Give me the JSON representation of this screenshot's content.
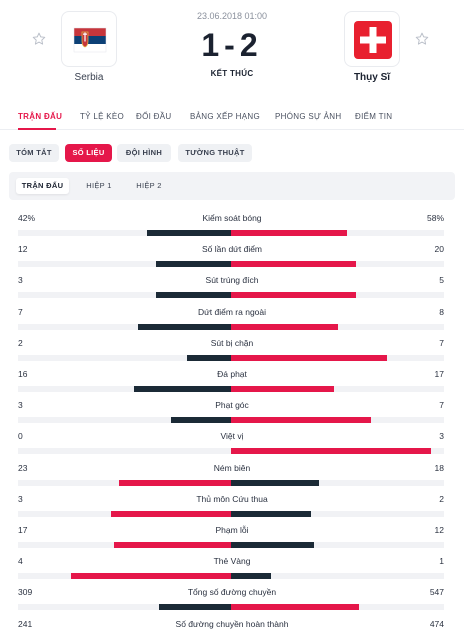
{
  "match": {
    "date": "23.06.2018 01:00",
    "score": "1-2",
    "status": "KẾT THÚC",
    "home": {
      "name": "Serbia"
    },
    "away": {
      "name": "Thụy Sĩ"
    }
  },
  "main_tabs": [
    "TRẬN ĐẤU",
    "TỶ LỆ KÈO",
    "ĐỐI ĐẦU",
    "BẢNG XẾP HẠNG",
    "PHÓNG SỰ ẢNH",
    "ĐIỂM TIN"
  ],
  "sub_tabs": [
    "TÓM TẮT",
    "SỐ LIỆU",
    "ĐỘI HÌNH",
    "TƯỜNG THUẬT"
  ],
  "period_tabs": [
    "TRẬN ĐẤU",
    "HIỆP 1",
    "HIỆP 2"
  ],
  "colors": {
    "accent": "#e5174a",
    "dark": "#1b2a36",
    "track": "#f1f2f5"
  },
  "stats": [
    {
      "label": "Kiểm soát bóng",
      "home": "42%",
      "away": "58%",
      "home_val": 42,
      "away_val": 58
    },
    {
      "label": "Số lần dứt điểm",
      "home": "12",
      "away": "20",
      "home_val": 12,
      "away_val": 20
    },
    {
      "label": "Sút trúng đích",
      "home": "3",
      "away": "5",
      "home_val": 3,
      "away_val": 5
    },
    {
      "label": "Dứt điểm ra ngoài",
      "home": "7",
      "away": "8",
      "home_val": 7,
      "away_val": 8
    },
    {
      "label": "Sút bị chặn",
      "home": "2",
      "away": "7",
      "home_val": 2,
      "away_val": 7
    },
    {
      "label": "Đá phạt",
      "home": "16",
      "away": "17",
      "home_val": 16,
      "away_val": 17
    },
    {
      "label": "Phạt góc",
      "home": "3",
      "away": "7",
      "home_val": 3,
      "away_val": 7
    },
    {
      "label": "Việt vị",
      "home": "0",
      "away": "3",
      "home_val": 0,
      "away_val": 3
    },
    {
      "label": "Ném biên",
      "home": "23",
      "away": "18",
      "home_val": 23,
      "away_val": 18
    },
    {
      "label": "Thủ môn Cứu thua",
      "home": "3",
      "away": "2",
      "home_val": 3,
      "away_val": 2
    },
    {
      "label": "Phạm lỗi",
      "home": "17",
      "away": "12",
      "home_val": 17,
      "away_val": 12
    },
    {
      "label": "Thẻ Vàng",
      "home": "4",
      "away": "1",
      "home_val": 4,
      "away_val": 1
    },
    {
      "label": "Tổng số đường chuyền",
      "home": "309",
      "away": "547",
      "home_val": 309,
      "away_val": 547
    },
    {
      "label": "Số đường chuyền hoàn thành",
      "home": "241",
      "away": "474",
      "home_val": 241,
      "away_val": 474
    }
  ]
}
